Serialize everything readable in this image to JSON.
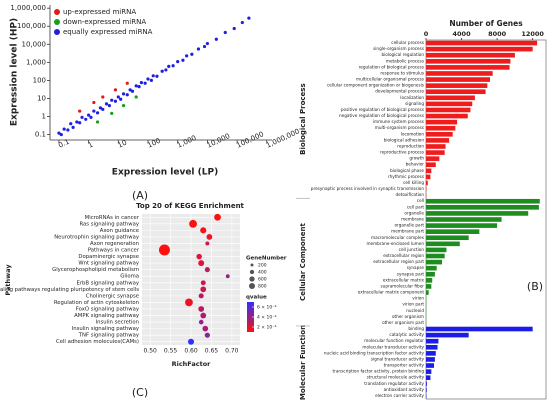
{
  "chart_data": [
    {
      "type": "scatter",
      "panel_label": "(A)",
      "xlabel": "Expression level (LP)",
      "ylabel": "Expression level (HP)",
      "log_scale": true,
      "xlim": [
        0.05,
        1500000
      ],
      "ylim": [
        0.05,
        1500000
      ],
      "xticks": [
        0.1,
        1,
        10,
        100,
        {
          "value": 1000,
          "label": "1,000"
        },
        {
          "value": 10000,
          "label": "10,000"
        },
        {
          "value": 100000,
          "label": "100,000"
        },
        {
          "value": 1000000,
          "label": "1,000,000"
        }
      ],
      "yticks": [
        0.1,
        1,
        10,
        100,
        {
          "value": 1000,
          "label": "1,000"
        },
        {
          "value": 10000,
          "label": "10,000"
        },
        {
          "value": 100000,
          "label": "100,000"
        },
        {
          "value": 1000000,
          "label": "1,000,000"
        }
      ],
      "series": [
        {
          "name": "up-expressed miRNA",
          "color": "#e31a1c",
          "x": [
            0.5,
            3,
            8,
            20,
            1.5
          ],
          "y": [
            2,
            12,
            30,
            70,
            6
          ]
        },
        {
          "name": "down-expressed miRNA",
          "color": "#1a9e1a",
          "x": [
            2,
            6,
            15,
            40
          ],
          "y": [
            0.5,
            1.5,
            4,
            12
          ]
        },
        {
          "name": "equally expressed miRNA",
          "color": "#1f1fe0",
          "x": [
            0.1,
            0.12,
            0.15,
            0.2,
            0.25,
            0.3,
            0.4,
            0.5,
            0.6,
            0.8,
            1,
            1.2,
            1.5,
            2,
            2.5,
            3,
            4,
            5,
            6,
            8,
            10,
            12,
            15,
            20,
            25,
            30,
            40,
            50,
            60,
            80,
            100,
            130,
            150,
            200,
            300,
            400,
            500,
            700,
            1000,
            1500,
            2000,
            3000,
            5000,
            8000,
            10000,
            20000,
            40000,
            80000,
            150000,
            250000
          ],
          "y": [
            0.12,
            0.1,
            0.2,
            0.18,
            0.4,
            0.25,
            0.5,
            0.45,
            0.9,
            0.7,
            1.2,
            0.9,
            2,
            1.6,
            3,
            2.5,
            5,
            4,
            8,
            7,
            12,
            9,
            18,
            16,
            30,
            25,
            50,
            45,
            75,
            70,
            120,
            100,
            180,
            170,
            320,
            380,
            600,
            650,
            1100,
            1300,
            2300,
            2800,
            5500,
            7500,
            11000,
            19000,
            45000,
            75000,
            160000,
            280000
          ]
        }
      ]
    },
    {
      "type": "bar",
      "panel_label": "(B)",
      "xlabel": "Number of Genes",
      "xlim": [
        0,
        13500
      ],
      "xticks": [
        0,
        4000,
        8000,
        12000
      ],
      "groups": [
        {
          "name": "Biological Process",
          "color": "#ee1c1c",
          "categories": [
            "cellular process",
            "single-organism process",
            "biological regulation",
            "metabolic process",
            "regulation of biological process",
            "response to stimulus",
            "multicellular organismal process",
            "cellular component organization or biogenesis",
            "developmental process",
            "localization",
            "signaling",
            "positive regulation of biological process",
            "negative regulation of biological process",
            "immune system process",
            "multi-organism process",
            "locomotion",
            "biological adhesion",
            "reproduction",
            "reproductive process",
            "growth",
            "behavior",
            "biological phase",
            "rhythmic process",
            "cell killing",
            "presynaptic process involved in synaptic transmission",
            "detoxification"
          ],
          "values": [
            12500,
            12000,
            10000,
            9500,
            9400,
            7500,
            7200,
            6900,
            6700,
            5500,
            5200,
            5000,
            4700,
            3500,
            3300,
            3000,
            2600,
            2200,
            2100,
            1500,
            1100,
            600,
            500,
            200,
            50,
            30
          ]
        },
        {
          "name": "Cellular Component",
          "color": "#1e8c1e",
          "categories": [
            "cell",
            "cell part",
            "organelle",
            "membrane",
            "organelle part",
            "membrane part",
            "macromolecular complex",
            "membrane-enclosed lumen",
            "cell junction",
            "extracellular region",
            "extracellular region part",
            "synapse",
            "synapse part",
            "extracellular matrix",
            "supramolecular fiber",
            "extracellular matrix component",
            "virion",
            "virion part",
            "nucleoid",
            "other organism",
            "other organism part"
          ],
          "values": [
            12800,
            12700,
            11500,
            8500,
            8000,
            6000,
            4800,
            3800,
            2300,
            2100,
            1800,
            1200,
            1000,
            700,
            600,
            300,
            30,
            30,
            20,
            20,
            20
          ]
        },
        {
          "name": "Molecular Function",
          "color": "#1c1ce8",
          "categories": [
            "binding",
            "catalytic activity",
            "molecular function regulator",
            "molecular transducer activity",
            "nucleic acid binding transcription factor activity",
            "signal transducer activity",
            "transporter activity",
            "transcription factor activity, protein binding",
            "structural molecule activity",
            "translation regulator activity",
            "antioxidant activity",
            "electron carrier activity"
          ],
          "values": [
            12000,
            4800,
            1400,
            1300,
            1100,
            1000,
            900,
            600,
            500,
            100,
            80,
            40
          ]
        }
      ]
    },
    {
      "type": "bubble",
      "panel_label": "(C)",
      "title": "Top 20 of KEGG Enrichment",
      "xlabel": "RichFactor",
      "ylabel": "Pathway",
      "xlim": [
        0.48,
        0.72
      ],
      "xticks": [
        {
          "value": 0.5,
          "label": "0.50"
        },
        {
          "value": 0.55,
          "label": "0.55"
        },
        {
          "value": 0.6,
          "label": "0.60"
        },
        {
          "value": 0.65,
          "label": "0.65"
        },
        {
          "value": 0.7,
          "label": "0.70"
        }
      ],
      "categories": [
        "MicroRNAs in cancer",
        "Ras signaling pathway",
        "Axon guidance",
        "Neurotrophin signaling pathway",
        "Axon regeneration",
        "Pathways in cancer",
        "Dopaminergic synapse",
        "Wnt signaling pathway",
        "Glycerophospholipid metabolism",
        "Glioma",
        "ErbB signaling pathway",
        "Signaling pathways regulating pluripotency of stem cells",
        "Cholinergic synapse",
        "Regulation of actin cytoskeleton",
        "FoxO signaling pathway",
        "AMPK signaling pathway",
        "Insulin secretion",
        "Insulin signaling pathway",
        "TNF signaling pathway",
        "Cell adhesion molecules(CAMs)"
      ],
      "richfactor": [
        0.665,
        0.605,
        0.63,
        0.645,
        0.64,
        0.535,
        0.62,
        0.625,
        0.64,
        0.69,
        0.63,
        0.63,
        0.625,
        0.595,
        0.625,
        0.63,
        0.625,
        0.635,
        0.64,
        0.6
      ],
      "genenumber": [
        300,
        400,
        250,
        220,
        100,
        800,
        200,
        230,
        170,
        100,
        160,
        220,
        170,
        400,
        220,
        220,
        140,
        210,
        180,
        240
      ],
      "qvalue": [
        1e-06,
        1e-06,
        1.2e-06,
        1.5e-06,
        2.5e-06,
        1e-06,
        2e-06,
        2e-06,
        3e-06,
        4e-06,
        2.5e-06,
        2.5e-06,
        3e-06,
        1.5e-06,
        3e-06,
        3.5e-06,
        4e-06,
        3.5e-06,
        4.5e-06,
        7e-06
      ],
      "size_legend_title": "GeneNumber",
      "size_legend": [
        200,
        400,
        600,
        800
      ],
      "color_legend_title": "qvalue",
      "qlim": [
        1e-06,
        7e-06
      ],
      "qcolors": [
        "#ff1010",
        "#3030ff"
      ],
      "color_legend": [
        {
          "value": 6e-06,
          "label": "6 × 10⁻⁶"
        },
        {
          "value": 4e-06,
          "label": "4 × 10⁻⁶"
        },
        {
          "value": 2e-06,
          "label": "2 × 10⁻⁶"
        }
      ]
    }
  ]
}
